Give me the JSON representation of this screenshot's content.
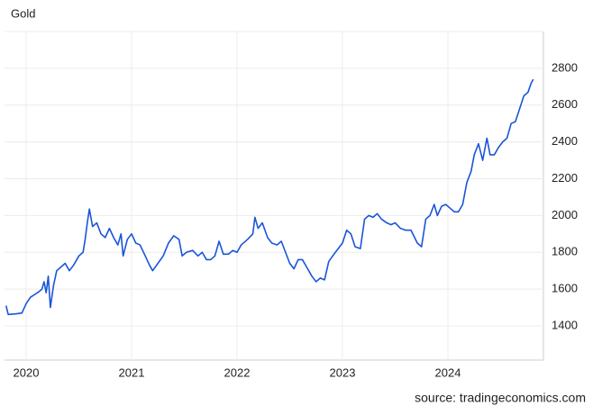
{
  "chart_data": {
    "type": "line",
    "title": "Gold",
    "source": "source: tradingeconomics.com",
    "x": [
      2019.81,
      2019.83,
      2019.9,
      2019.96,
      2020.0,
      2020.04,
      2020.08,
      2020.12,
      2020.15,
      2020.17,
      2020.19,
      2020.21,
      2020.23,
      2020.26,
      2020.29,
      2020.33,
      2020.37,
      2020.41,
      2020.45,
      2020.5,
      2020.54,
      2020.56,
      2020.58,
      2020.6,
      2020.63,
      2020.67,
      2020.71,
      2020.75,
      2020.79,
      2020.83,
      2020.87,
      2020.9,
      2020.92,
      2020.96,
      2021.0,
      2021.04,
      2021.08,
      2021.13,
      2021.17,
      2021.2,
      2021.25,
      2021.3,
      2021.35,
      2021.4,
      2021.45,
      2021.48,
      2021.52,
      2021.58,
      2021.63,
      2021.67,
      2021.71,
      2021.75,
      2021.79,
      2021.83,
      2021.87,
      2021.92,
      2021.96,
      2022.0,
      2022.04,
      2022.1,
      2022.15,
      2022.17,
      2022.2,
      2022.24,
      2022.29,
      2022.33,
      2022.38,
      2022.42,
      2022.46,
      2022.5,
      2022.54,
      2022.58,
      2022.62,
      2022.67,
      2022.71,
      2022.75,
      2022.79,
      2022.83,
      2022.87,
      2022.92,
      2022.96,
      2023.0,
      2023.04,
      2023.08,
      2023.12,
      2023.17,
      2023.21,
      2023.25,
      2023.29,
      2023.33,
      2023.37,
      2023.42,
      2023.46,
      2023.5,
      2023.55,
      2023.6,
      2023.65,
      2023.71,
      2023.75,
      2023.79,
      2023.83,
      2023.87,
      2023.9,
      2023.94,
      2023.98,
      2024.02,
      2024.06,
      2024.1,
      2024.14,
      2024.18,
      2024.22,
      2024.25,
      2024.29,
      2024.33,
      2024.37,
      2024.4,
      2024.44,
      2024.48,
      2024.52,
      2024.56,
      2024.6,
      2024.64,
      2024.68,
      2024.72,
      2024.76,
      2024.79,
      2024.81
    ],
    "series": [
      {
        "name": "Gold",
        "color": "#1a55d9",
        "values": [
          1510,
          1462,
          1465,
          1470,
          1520,
          1555,
          1570,
          1585,
          1600,
          1640,
          1580,
          1670,
          1500,
          1620,
          1700,
          1720,
          1740,
          1700,
          1730,
          1780,
          1800,
          1870,
          1960,
          2035,
          1940,
          1960,
          1900,
          1880,
          1930,
          1880,
          1840,
          1900,
          1780,
          1870,
          1900,
          1850,
          1840,
          1780,
          1730,
          1700,
          1740,
          1780,
          1850,
          1890,
          1870,
          1780,
          1800,
          1810,
          1780,
          1800,
          1760,
          1760,
          1780,
          1860,
          1790,
          1790,
          1810,
          1800,
          1840,
          1870,
          1900,
          1990,
          1930,
          1960,
          1880,
          1850,
          1840,
          1860,
          1800,
          1740,
          1710,
          1760,
          1760,
          1710,
          1670,
          1640,
          1660,
          1650,
          1750,
          1790,
          1820,
          1850,
          1920,
          1900,
          1830,
          1820,
          1980,
          2000,
          1990,
          2010,
          1980,
          1960,
          1950,
          1960,
          1930,
          1920,
          1920,
          1850,
          1830,
          1980,
          2000,
          2060,
          2000,
          2050,
          2060,
          2040,
          2020,
          2020,
          2060,
          2180,
          2240,
          2330,
          2390,
          2300,
          2420,
          2330,
          2330,
          2370,
          2400,
          2420,
          2500,
          2510,
          2580,
          2650,
          2670,
          2720,
          2740
        ]
      }
    ],
    "xlim": [
      2019.795,
      2024.906
    ],
    "xticks": [
      2020,
      2021,
      2022,
      2023,
      2024
    ],
    "ylim": [
      1214,
      3000
    ],
    "yticks": [
      1400,
      1600,
      1800,
      2000,
      2200,
      2400,
      2600,
      2800
    ],
    "grid": true
  }
}
